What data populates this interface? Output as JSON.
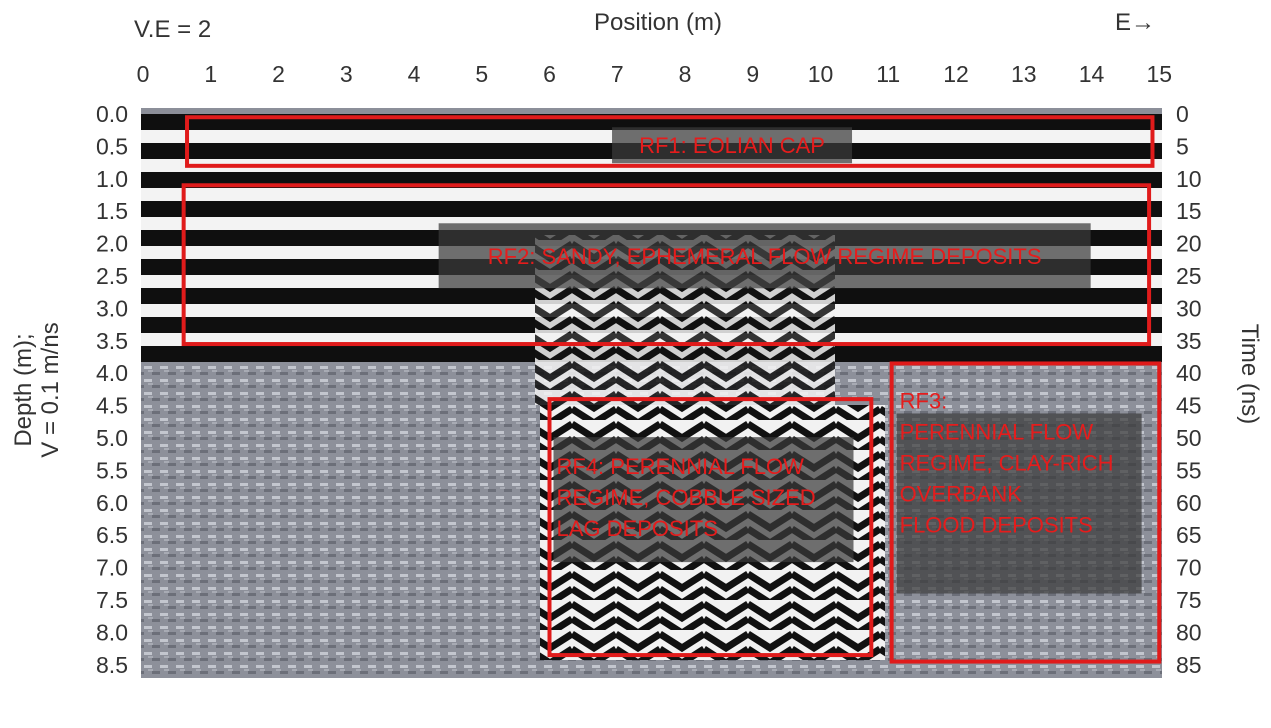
{
  "figure": {
    "ve_label": "V.E = 2",
    "x_title": "Position (m)",
    "direction_label": "E→",
    "y_left_title_line1": "Depth (m);",
    "y_left_title_line2": "V = 0.1 m/ns",
    "y_right_title": "Time (ns)",
    "x_ticks": [
      "0",
      "1",
      "2",
      "3",
      "4",
      "5",
      "6",
      "7",
      "8",
      "9",
      "10",
      "11",
      "12",
      "13",
      "14",
      "15"
    ],
    "depth_ticks": [
      "0.0",
      "0.5",
      "1.0",
      "1.5",
      "2.0",
      "2.5",
      "3.0",
      "3.5",
      "4.0",
      "4.5",
      "5.0",
      "5.5",
      "6.0",
      "6.5",
      "7.0",
      "7.5",
      "8.0",
      "8.5"
    ],
    "time_ticks": [
      "0",
      "5",
      "10",
      "15",
      "20",
      "25",
      "30",
      "35",
      "40",
      "45",
      "50",
      "55",
      "60",
      "65",
      "70",
      "75",
      "80",
      "85"
    ],
    "colors": {
      "annotation_red": "#e01b1b",
      "label_red": "#e61c1c",
      "radargram_gray": "#8c8f99"
    },
    "zones": [
      {
        "id": "rf1",
        "lines": [
          "RF1: EOLIAN CAP"
        ],
        "x_range_m": [
          0.65,
          14.9
        ],
        "depth_range_m": [
          0.05,
          0.8
        ]
      },
      {
        "id": "rf2",
        "lines": [
          "RF2: SANDY, EPHEMERAL FLOW REGIME DEPOSITS"
        ],
        "x_range_m": [
          0.6,
          14.85
        ],
        "depth_range_m": [
          1.1,
          3.55
        ]
      },
      {
        "id": "rf4",
        "lines": [
          "RF4: PERENNIAL FLOW",
          "REGIME, COBBLE SIZED",
          "LAG DEPOSITS"
        ],
        "x_range_m": [
          6.0,
          10.75
        ],
        "depth_range_m": [
          4.4,
          8.35
        ]
      },
      {
        "id": "rf3",
        "lines": [
          "RF3:",
          "PERENNIAL FLOW",
          "REGIME, CLAY-RICH",
          "OVERBANK",
          "FLOOD DEPOSITS"
        ],
        "x_range_m": [
          11.05,
          15.0
        ],
        "depth_range_m": [
          3.85,
          8.45
        ]
      }
    ]
  }
}
